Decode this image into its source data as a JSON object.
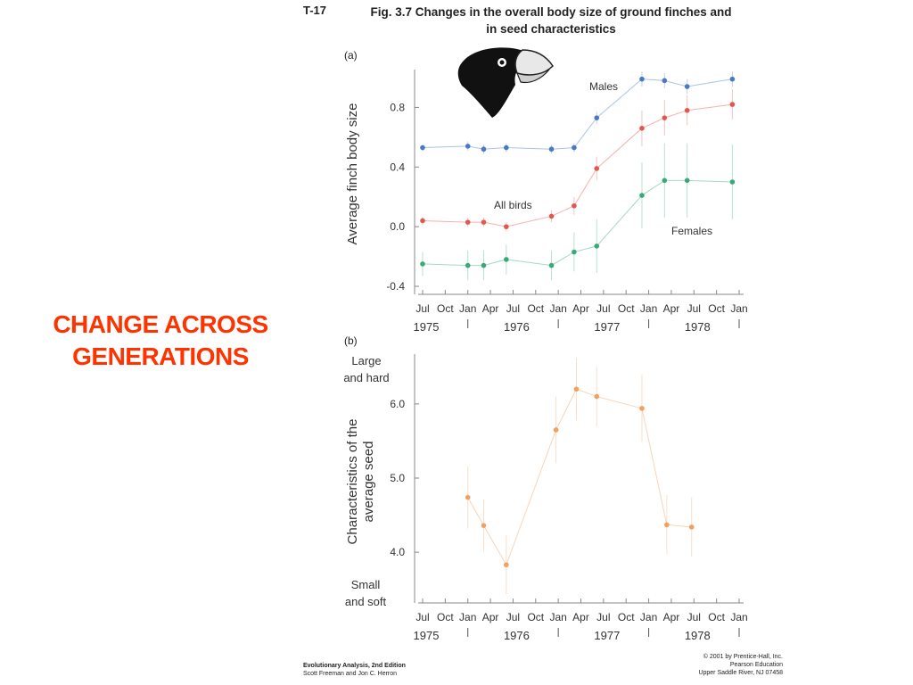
{
  "slide_number": "T-17",
  "figure_title_line1": "Fig. 3.7 Changes in the overall body size of ground finches and",
  "figure_title_line2": "in seed characteristics",
  "main_title_line1": "CHANGE ACROSS",
  "main_title_line2": "GENERATIONS",
  "footer_left": {
    "line1": "Evolutionary Analysis, 2nd Edition",
    "line2": "Scott Freeman and Jon C. Herron"
  },
  "footer_right": {
    "line1": "© 2001 by Prentice-Hall, Inc.",
    "line2": "Pearson Education",
    "line3": "Upper Saddle River, NJ 07458"
  },
  "colors": {
    "title_red": "#ff3300",
    "males": "#4a78c4",
    "all_birds": "#e0574e",
    "females": "#3aa877",
    "seed": "#f0a060",
    "axis": "#888888"
  },
  "icons": {
    "finch_head": "finch-head-illustration"
  },
  "chart_data": [
    {
      "type": "line",
      "panel_label": "(a)",
      "ylabel": "Average finch body size",
      "ylim": [
        -0.4,
        1.0
      ],
      "yticks": [
        -0.4,
        0.0,
        0.4,
        0.8
      ],
      "ytick_labels": [
        "-0.4",
        "0.0",
        "0.4",
        "0.8"
      ],
      "x_months": [
        "Jul",
        "Oct",
        "Jan",
        "Apr",
        "Jul",
        "Oct",
        "Jan",
        "Apr",
        "Jul",
        "Oct",
        "Jan",
        "Apr",
        "Jul",
        "Oct",
        "Jan"
      ],
      "x_years": [
        "1975",
        "1976",
        "1977",
        "1978"
      ],
      "xlim": [
        0,
        14
      ],
      "grid": false,
      "series": [
        {
          "name": "Males",
          "color": "#4a78c4",
          "x": [
            0,
            2,
            2.7,
            3.7,
            5.7,
            6.7,
            7.7,
            9.7,
            10.7,
            11.7,
            13.7
          ],
          "y": [
            0.53,
            0.54,
            0.52,
            0.53,
            0.52,
            0.53,
            0.73,
            0.99,
            0.98,
            0.94,
            0.99
          ],
          "err": [
            0.02,
            0.03,
            0.03,
            0.03,
            0.03,
            0.03,
            0.04,
            0.05,
            0.05,
            0.05,
            0.05
          ]
        },
        {
          "name": "All birds",
          "color": "#e0574e",
          "x": [
            0,
            2,
            2.7,
            3.7,
            5.7,
            6.7,
            7.7,
            9.7,
            10.7,
            11.7,
            13.7
          ],
          "y": [
            0.04,
            0.03,
            0.03,
            0.0,
            0.07,
            0.14,
            0.39,
            0.66,
            0.73,
            0.78,
            0.82
          ],
          "err": [
            0.03,
            0.03,
            0.03,
            0.03,
            0.04,
            0.06,
            0.08,
            0.12,
            0.12,
            0.1,
            0.1
          ]
        },
        {
          "name": "Females",
          "color": "#3aa877",
          "x": [
            0,
            2,
            2.7,
            3.7,
            5.7,
            6.7,
            7.7,
            9.7,
            10.7,
            11.7,
            13.7
          ],
          "y": [
            -0.25,
            -0.26,
            -0.26,
            -0.22,
            -0.26,
            -0.17,
            -0.13,
            0.21,
            0.31,
            0.31,
            0.3
          ],
          "err": [
            0.08,
            0.1,
            0.1,
            0.1,
            0.1,
            0.13,
            0.18,
            0.22,
            0.25,
            0.25,
            0.25
          ]
        }
      ],
      "annotations": [
        "Males",
        "All birds",
        "Females"
      ]
    },
    {
      "type": "line",
      "panel_label": "(b)",
      "ylabel_line1": "Characteristics of the",
      "ylabel_line2": "average seed",
      "ylim": [
        3.4,
        6.6
      ],
      "yticks": [
        4.0,
        5.0,
        6.0
      ],
      "ytick_labels": [
        "4.0",
        "5.0",
        "6.0"
      ],
      "top_label_line1": "Large",
      "top_label_line2": "and hard",
      "bottom_label_line1": "Small",
      "bottom_label_line2": "and soft",
      "x_months": [
        "Jul",
        "Oct",
        "Jan",
        "Apr",
        "Jul",
        "Oct",
        "Jan",
        "Apr",
        "Jul",
        "Oct",
        "Jan",
        "Apr",
        "Jul",
        "Oct",
        "Jan"
      ],
      "x_years": [
        "1975",
        "1976",
        "1977",
        "1978"
      ],
      "xlim": [
        0,
        14
      ],
      "grid": false,
      "series": [
        {
          "color": "#f0a060",
          "x": [
            2,
            2.7,
            3.7,
            5.9,
            6.8,
            7.7,
            9.7,
            10.8,
            11.9
          ],
          "y": [
            4.74,
            4.36,
            3.83,
            5.65,
            6.2,
            6.1,
            5.94,
            4.37,
            4.34
          ],
          "err": [
            0.42,
            0.35,
            0.4,
            0.45,
            0.42,
            0.4,
            0.45,
            0.4,
            0.4
          ]
        }
      ]
    }
  ]
}
